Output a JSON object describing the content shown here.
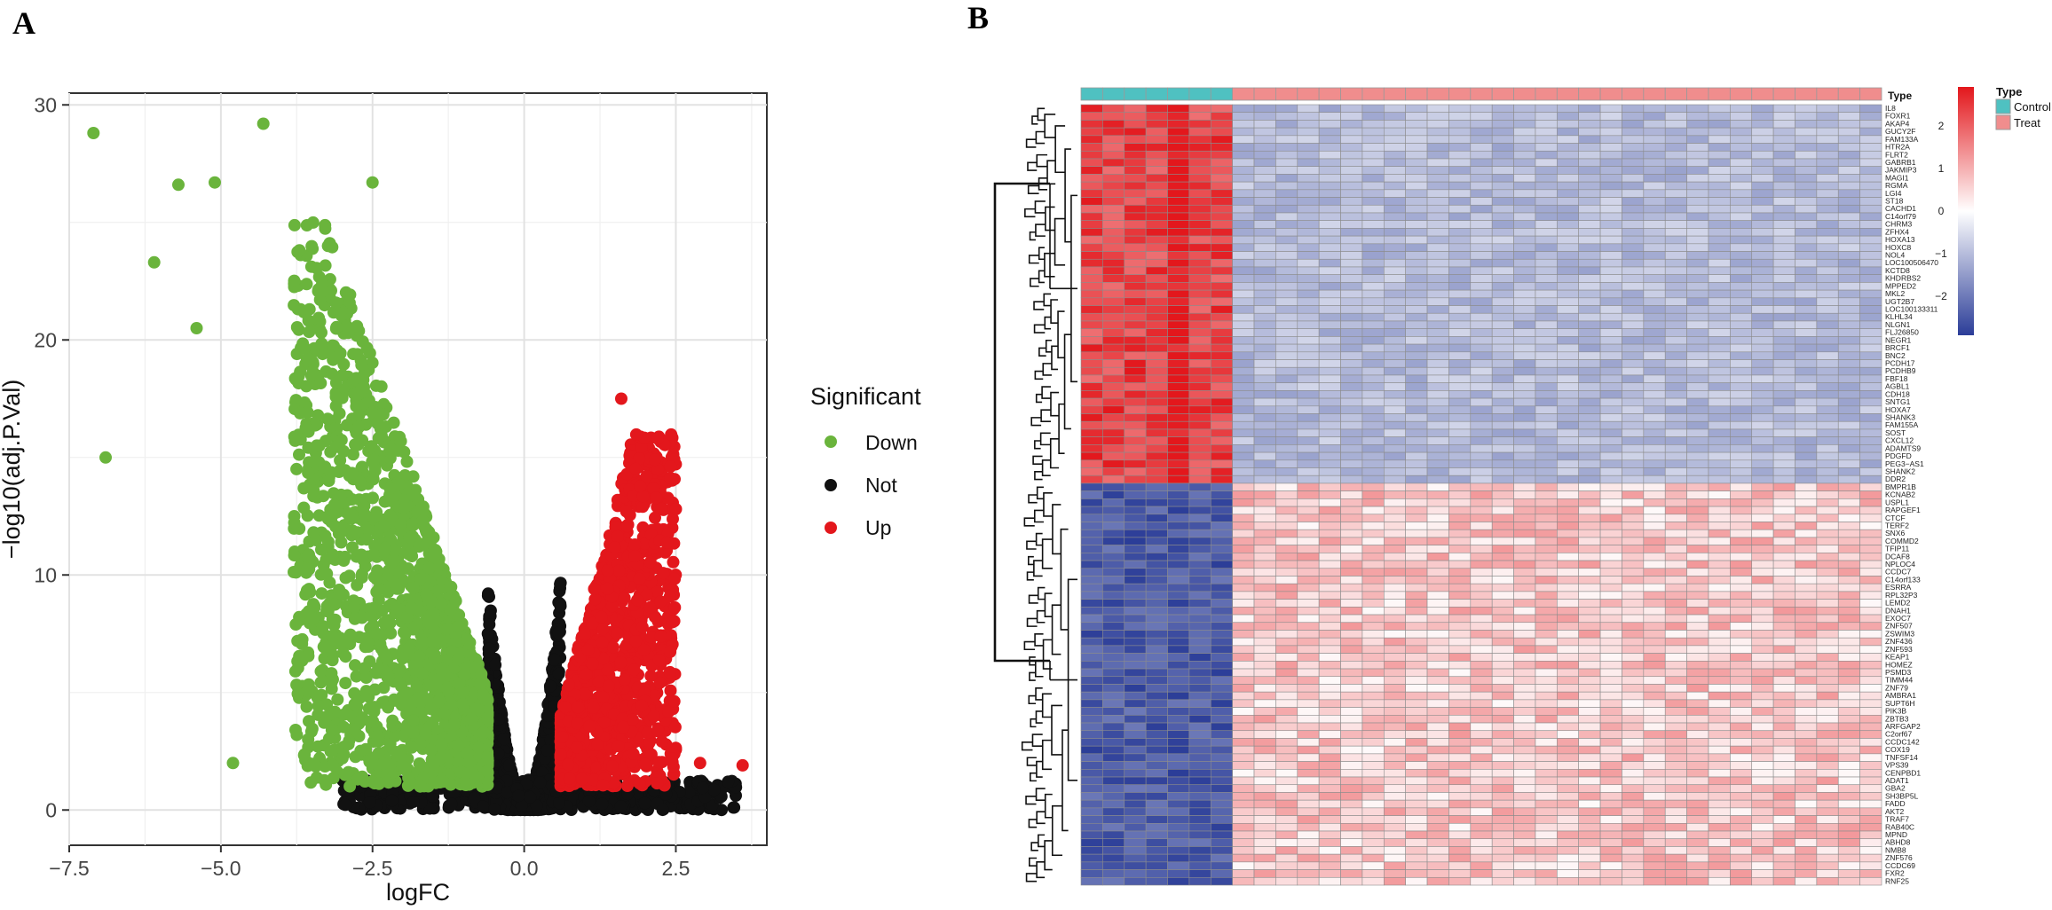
{
  "panels": {
    "a_label": "A",
    "b_label": "B"
  },
  "chart_data": [
    {
      "type": "scatter",
      "title": "",
      "xlabel": "logFC",
      "ylabel": "−log10(adj.P.Val)",
      "xlim": [
        -7.5,
        4.0
      ],
      "ylim": [
        -1.5,
        30.5
      ],
      "x_ticks": [
        -7.5,
        -5.0,
        -2.5,
        0.0,
        2.5
      ],
      "x_tick_labels": [
        "−7.5",
        "−5.0",
        "−2.5",
        "0.0",
        "2.5"
      ],
      "y_ticks": [
        0,
        10,
        20,
        30
      ],
      "y_tick_labels": [
        "0",
        "10",
        "20",
        "30"
      ],
      "grid": true,
      "legend": {
        "title": "Significant",
        "placement": "right",
        "entries": [
          {
            "label": "Down",
            "color": "#6ab43c"
          },
          {
            "label": "Not",
            "color": "#111111"
          },
          {
            "label": "Up",
            "color": "#e3171c"
          }
        ]
      },
      "highlighted_points": [
        {
          "x": -7.1,
          "y": 28.8,
          "group": "Down"
        },
        {
          "x": -4.3,
          "y": 29.2,
          "group": "Down"
        },
        {
          "x": -6.9,
          "y": 15.0,
          "group": "Down"
        },
        {
          "x": -4.8,
          "y": 2.0,
          "group": "Down"
        },
        {
          "x": -5.7,
          "y": 26.6,
          "group": "Down"
        },
        {
          "x": -5.1,
          "y": 26.7,
          "group": "Down"
        },
        {
          "x": -6.1,
          "y": 23.3,
          "group": "Down"
        },
        {
          "x": -5.4,
          "y": 20.5,
          "group": "Down"
        },
        {
          "x": -2.5,
          "y": 26.7,
          "group": "Down"
        },
        {
          "x": 1.6,
          "y": 17.5,
          "group": "Up"
        },
        {
          "x": 2.2,
          "y": 15.8,
          "group": "Up"
        },
        {
          "x": 2.5,
          "y": 12.8,
          "group": "Up"
        },
        {
          "x": 3.6,
          "y": 1.9,
          "group": "Up"
        },
        {
          "x": 2.9,
          "y": 2.0,
          "group": "Up"
        }
      ]
    },
    {
      "type": "heatmap",
      "title": "",
      "columns": {
        "control_count": 7,
        "treat_count": 30
      },
      "annotation_title": "Type",
      "annotation_legend": [
        {
          "label": "Control",
          "color": "#4fc1c1"
        },
        {
          "label": "Treat",
          "color": "#f08d8d"
        }
      ],
      "color_scale": {
        "ticks": [
          "2",
          "1",
          "0",
          "−1",
          "−2"
        ],
        "low": "#2b3d98",
        "mid": "#ffffff",
        "high": "#e3171c"
      },
      "genes_up_in_control": [
        "IL8",
        "FOXR1",
        "AKAP4",
        "GUCY2F",
        "FAM133A",
        "HTR2A",
        "FLRT2",
        "GABRB1",
        "JAKMIP3",
        "MAGI1",
        "RGMA",
        "LGI4",
        "ST18",
        "CACHD1",
        "C14orf79",
        "CHRM3",
        "ZFHX4",
        "HOXA13",
        "HOXC8",
        "NOL4",
        "LOC100506470",
        "KCTD8",
        "KHDRBS2",
        "MPPED2",
        "MKL2",
        "UGT2B7",
        "LOC100133311",
        "KLHL34",
        "NLGN1",
        "FLJ26850",
        "NEGR1",
        "BRCF1",
        "BNC2",
        "PCDH17",
        "PCDHB9",
        "FBF18",
        "AGBL1",
        "CDH18",
        "SNTG1",
        "HOXA7",
        "SHANK3",
        "FAM155A",
        "SOST",
        "CXCL12",
        "ADAMTS9",
        "PDGFD",
        "PEG3−AS1",
        "SHANK2",
        "DDR2"
      ],
      "genes_up_in_treat": [
        "BMPR1B",
        "KCNAB2",
        "USPL1",
        "RAPGEF1",
        "CTCF",
        "TERF2",
        "SNX6",
        "COMMD2",
        "TFIP11",
        "DCAF8",
        "NPLOC4",
        "CCDC7",
        "C14orf133",
        "ESRRA",
        "RPL32P3",
        "LEMD2",
        "DNAH1",
        "EXOC7",
        "ZNF507",
        "ZSWIM3",
        "ZNF436",
        "ZNF593",
        "KEAP1",
        "HOMEZ",
        "PSMD3",
        "TIMM44",
        "ZNF79",
        "AMBRA1",
        "SUPT6H",
        "PIK3B",
        "ZBTB3",
        "ARFGAP2",
        "C2orf67",
        "CCDC142",
        "COX19",
        "TNFSF14",
        "VPS39",
        "CENPBD1",
        "ADAT1",
        "GBA2",
        "SH3BP5L",
        "FADD",
        "AKT2",
        "TRAF7",
        "RAB40C",
        "MPND",
        "ABHD8",
        "NMB8",
        "ZNF576",
        "CCDC69",
        "FXR2",
        "RNF25"
      ]
    }
  ]
}
